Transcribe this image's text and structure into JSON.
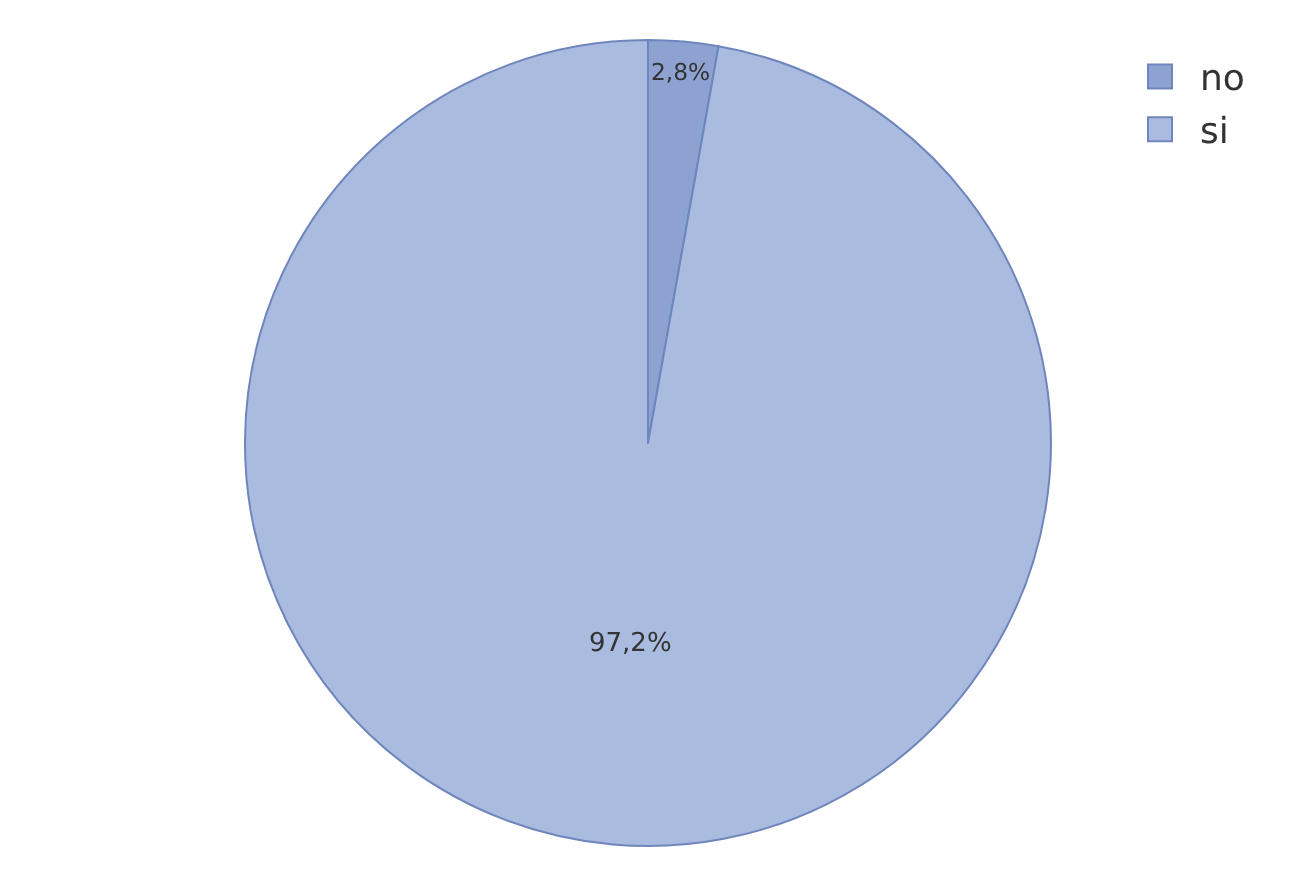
{
  "chart_data": {
    "type": "pie",
    "categories": [
      "no",
      "si"
    ],
    "values": [
      2.8,
      97.2
    ],
    "colors": [
      "#8ea2d2",
      "#aabbe0"
    ],
    "value_labels": [
      "2,8%",
      "97,2%"
    ],
    "legend": "top right"
  }
}
